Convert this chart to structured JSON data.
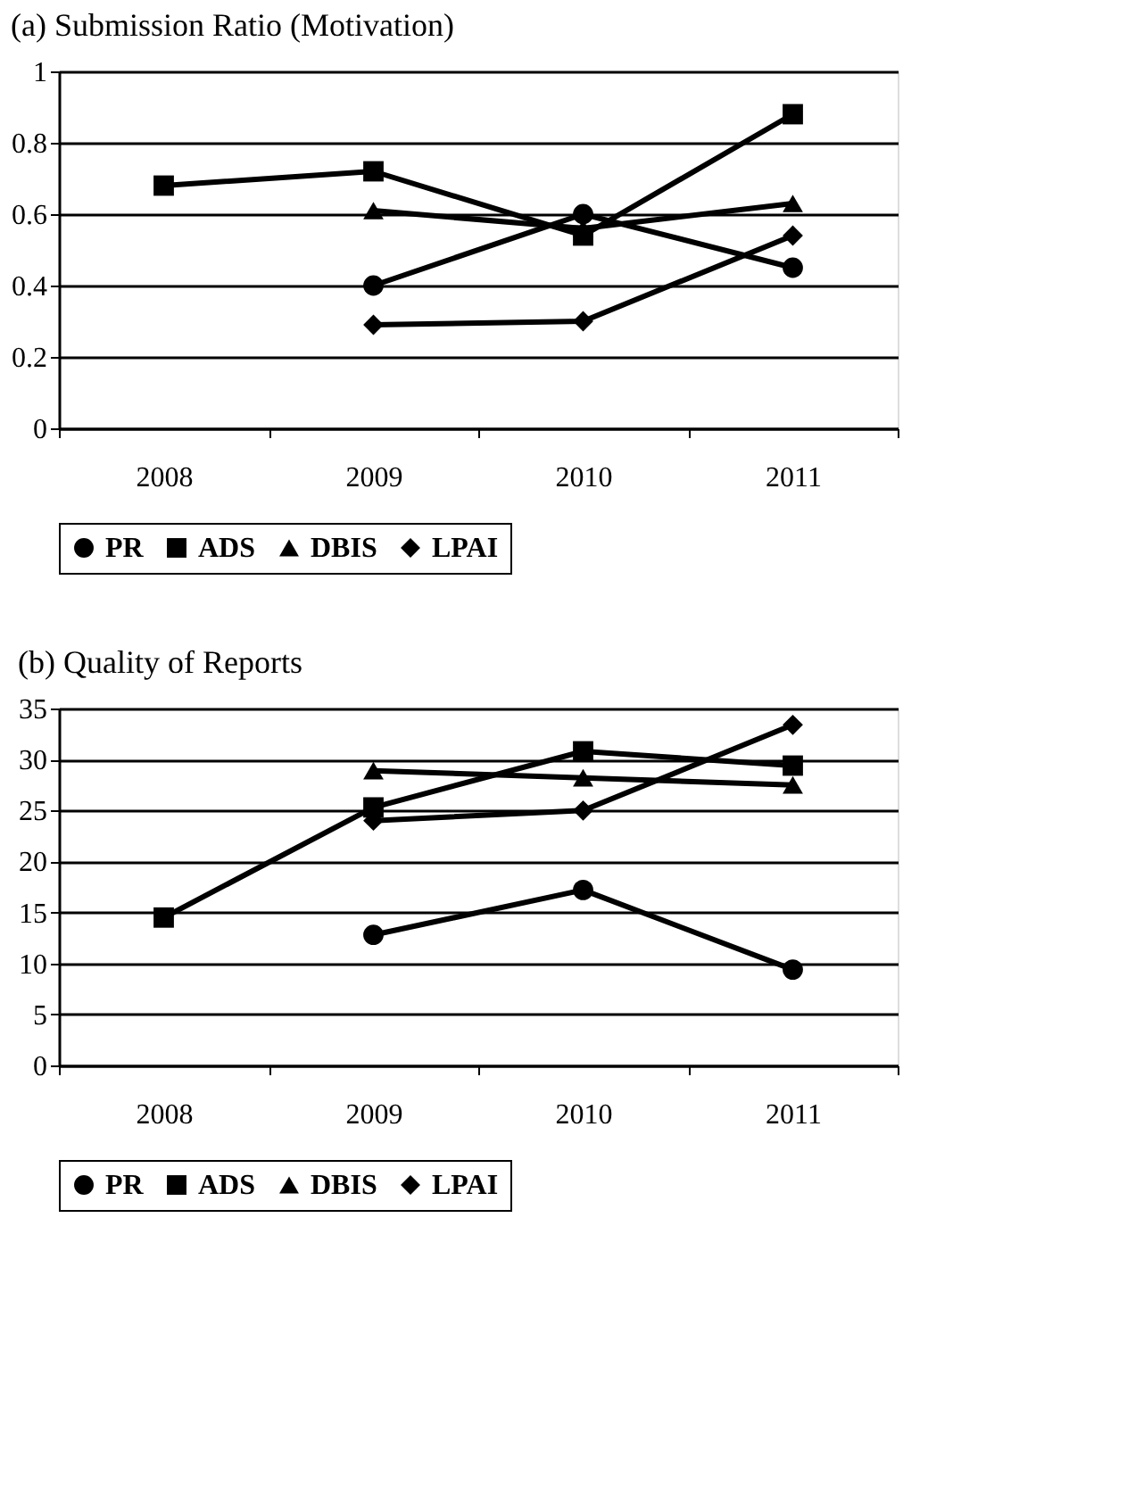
{
  "chart_data": [
    {
      "type": "line",
      "title": "(a) Submission Ratio (Motivation)",
      "categories": [
        "2008",
        "2009",
        "2010",
        "2011"
      ],
      "ylim": [
        0,
        1
      ],
      "yticks": [
        0,
        0.2,
        0.4,
        0.6,
        0.8,
        1
      ],
      "grid": "y",
      "legend": "bottom",
      "line_style": "solid",
      "series": [
        {
          "name": "PR",
          "color": "#000000",
          "marker": "circle",
          "values": [
            null,
            0.4,
            0.6,
            0.45
          ]
        },
        {
          "name": "ADS",
          "color": "#000000",
          "marker": "square",
          "values": [
            0.68,
            0.72,
            0.54,
            0.88
          ]
        },
        {
          "name": "DBIS",
          "color": "#000000",
          "marker": "triangle",
          "values": [
            null,
            0.61,
            0.56,
            0.63
          ]
        },
        {
          "name": "LPAI",
          "color": "#000000",
          "marker": "diamond",
          "values": [
            null,
            0.29,
            0.3,
            0.54
          ]
        }
      ]
    },
    {
      "type": "line",
      "title": "(b) Quality of Reports",
      "categories": [
        "2008",
        "2009",
        "2010",
        "2011"
      ],
      "ylim": [
        0,
        35
      ],
      "yticks": [
        0,
        5,
        10,
        15,
        20,
        25,
        30,
        35
      ],
      "grid": "y",
      "legend": "bottom",
      "line_style": "solid",
      "series": [
        {
          "name": "PR",
          "color": "#000000",
          "marker": "circle",
          "values": [
            null,
            12.8,
            17.2,
            9.4
          ]
        },
        {
          "name": "ADS",
          "color": "#000000",
          "marker": "square",
          "values": [
            14.5,
            25.3,
            30.8,
            29.4
          ]
        },
        {
          "name": "DBIS",
          "color": "#000000",
          "marker": "triangle",
          "values": [
            null,
            28.9,
            28.2,
            27.5
          ]
        },
        {
          "name": "LPAI",
          "color": "#000000",
          "marker": "diamond",
          "values": [
            null,
            24.0,
            25.0,
            33.4
          ]
        }
      ]
    }
  ]
}
